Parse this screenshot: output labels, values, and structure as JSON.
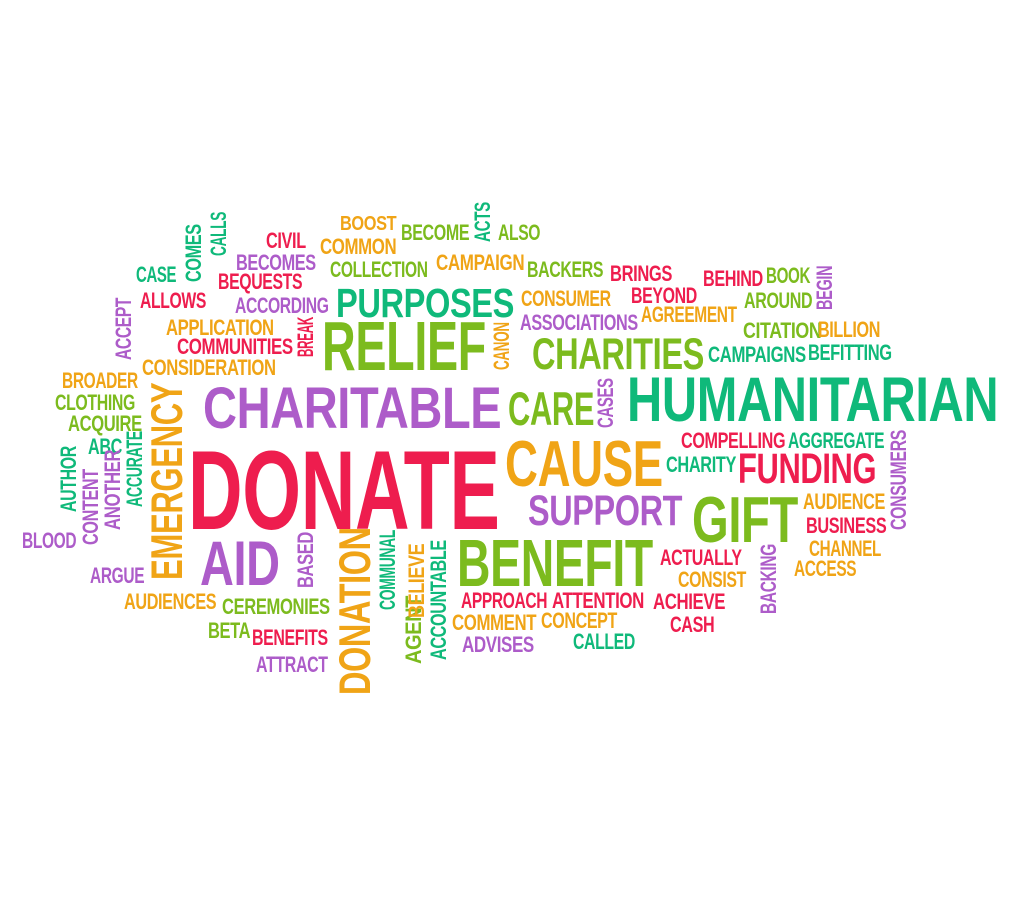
{
  "colors": {
    "red": "#ee1d4e",
    "green": "#7cbb1e",
    "purple": "#ad5cc9",
    "orange": "#f0a416",
    "teal": "#0fb97a"
  },
  "words": [
    {
      "text": "DONATE",
      "color": "red"
    },
    {
      "text": "CHARITABLE",
      "color": "purple"
    },
    {
      "text": "HUMANITARIAN",
      "color": "teal"
    },
    {
      "text": "RELIEF",
      "color": "green"
    },
    {
      "text": "CAUSE",
      "color": "orange"
    },
    {
      "text": "GIFT",
      "color": "green"
    },
    {
      "text": "BENEFIT",
      "color": "green"
    },
    {
      "text": "AID",
      "color": "purple"
    },
    {
      "text": "EMERGENCY",
      "color": "orange"
    },
    {
      "text": "DONATION",
      "color": "orange"
    },
    {
      "text": "PURPOSES",
      "color": "teal"
    },
    {
      "text": "CHARITIES",
      "color": "green"
    },
    {
      "text": "CARE",
      "color": "green"
    },
    {
      "text": "SUPPORT",
      "color": "purple"
    },
    {
      "text": "FUNDING",
      "color": "red"
    },
    {
      "text": "BOOST",
      "color": "orange"
    },
    {
      "text": "BECOME",
      "color": "green"
    },
    {
      "text": "ACTS",
      "color": "teal"
    },
    {
      "text": "ALSO",
      "color": "green"
    },
    {
      "text": "CIVIL",
      "color": "red"
    },
    {
      "text": "COMMON",
      "color": "orange"
    },
    {
      "text": "CALLS",
      "color": "teal"
    },
    {
      "text": "COMES",
      "color": "teal"
    },
    {
      "text": "BECOMES",
      "color": "purple"
    },
    {
      "text": "CASE",
      "color": "teal"
    },
    {
      "text": "BEQUESTS",
      "color": "red"
    },
    {
      "text": "COLLECTION",
      "color": "green"
    },
    {
      "text": "CAMPAIGN",
      "color": "orange"
    },
    {
      "text": "BACKERS",
      "color": "green"
    },
    {
      "text": "BRINGS",
      "color": "red"
    },
    {
      "text": "BEHIND",
      "color": "red"
    },
    {
      "text": "BOOK",
      "color": "green"
    },
    {
      "text": "BEGIN",
      "color": "purple"
    },
    {
      "text": "ALLOWS",
      "color": "red"
    },
    {
      "text": "ACCORDING",
      "color": "purple"
    },
    {
      "text": "CONSUMER",
      "color": "orange"
    },
    {
      "text": "BEYOND",
      "color": "red"
    },
    {
      "text": "AROUND",
      "color": "green"
    },
    {
      "text": "ACCEPT",
      "color": "purple"
    },
    {
      "text": "APPLICATION",
      "color": "orange"
    },
    {
      "text": "BREAK",
      "color": "red"
    },
    {
      "text": "ASSOCIATIONS",
      "color": "purple"
    },
    {
      "text": "AGREEMENT",
      "color": "orange"
    },
    {
      "text": "CITATION",
      "color": "green"
    },
    {
      "text": "BILLION",
      "color": "orange"
    },
    {
      "text": "COMMUNITIES",
      "color": "red"
    },
    {
      "text": "CANON",
      "color": "orange"
    },
    {
      "text": "CAMPAIGNS",
      "color": "teal"
    },
    {
      "text": "BEFITTING",
      "color": "teal"
    },
    {
      "text": "CONSIDERATION",
      "color": "orange"
    },
    {
      "text": "BROADER",
      "color": "orange"
    },
    {
      "text": "CLOTHING",
      "color": "green"
    },
    {
      "text": "CASES",
      "color": "purple"
    },
    {
      "text": "ACQUIRE",
      "color": "green"
    },
    {
      "text": "COMPELLING",
      "color": "red"
    },
    {
      "text": "AGGREGATE",
      "color": "teal"
    },
    {
      "text": "AUTHOR",
      "color": "teal"
    },
    {
      "text": "ABC",
      "color": "teal"
    },
    {
      "text": "ACCURATE",
      "color": "teal"
    },
    {
      "text": "CHARITY",
      "color": "teal"
    },
    {
      "text": "CONSUMERS",
      "color": "purple"
    },
    {
      "text": "CONTENT",
      "color": "purple"
    },
    {
      "text": "ANOTHER",
      "color": "purple"
    },
    {
      "text": "AUDIENCE",
      "color": "orange"
    },
    {
      "text": "BUSINESS",
      "color": "red"
    },
    {
      "text": "BLOOD",
      "color": "purple"
    },
    {
      "text": "BASED",
      "color": "purple"
    },
    {
      "text": "COMMUNAL",
      "color": "teal"
    },
    {
      "text": "CHANNEL",
      "color": "orange"
    },
    {
      "text": "BACKING",
      "color": "purple"
    },
    {
      "text": "ACTUALLY",
      "color": "red"
    },
    {
      "text": "ACCESS",
      "color": "orange"
    },
    {
      "text": "CONSIST",
      "color": "orange"
    },
    {
      "text": "ARGUE",
      "color": "purple"
    },
    {
      "text": "AGENT",
      "color": "green"
    },
    {
      "text": "BELIEVE",
      "color": "orange"
    },
    {
      "text": "ACCOUNTABLE",
      "color": "teal"
    },
    {
      "text": "AUDIENCES",
      "color": "orange"
    },
    {
      "text": "CEREMONIES",
      "color": "green"
    },
    {
      "text": "APPROACH",
      "color": "red"
    },
    {
      "text": "ATTENTION",
      "color": "red"
    },
    {
      "text": "ACHIEVE",
      "color": "red"
    },
    {
      "text": "COMMENT",
      "color": "orange"
    },
    {
      "text": "CONCEPT",
      "color": "orange"
    },
    {
      "text": "CASH",
      "color": "red"
    },
    {
      "text": "BETA",
      "color": "green"
    },
    {
      "text": "BENEFITS",
      "color": "red"
    },
    {
      "text": "ADVISES",
      "color": "purple"
    },
    {
      "text": "CALLED",
      "color": "teal"
    },
    {
      "text": "ATTRACT",
      "color": "purple"
    }
  ]
}
